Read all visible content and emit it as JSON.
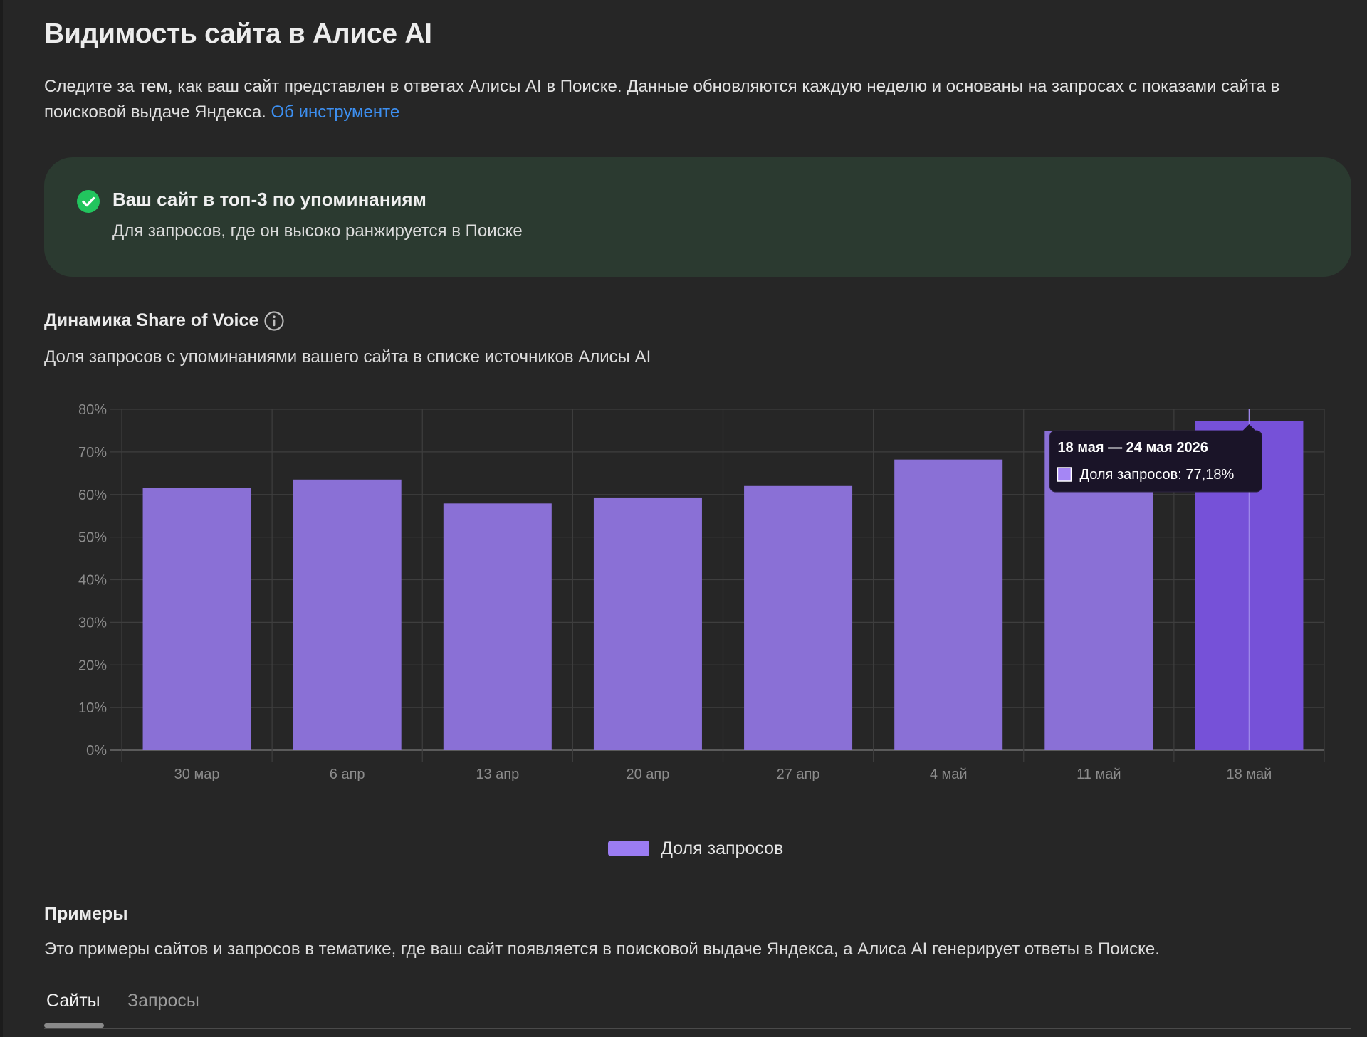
{
  "page": {
    "title": "Видимость сайта в Алисе AI",
    "intro_text": "Следите за тем, как ваш сайт представлен в ответах Алисы AI в Поиске. Данные обновляются каждую неделю и основаны на запросах с показами сайта в поисковой выдаче Яндекса. ",
    "intro_link": "Об инструменте"
  },
  "banner": {
    "icon": "check-circle-icon",
    "title": "Ваш сайт в топ-3 по упоминаниям",
    "subtitle": "Для запросов, где он высоко ранжируется в Поиске",
    "color": "#2b3a30"
  },
  "sov_section": {
    "title": "Динамика Share of Voice",
    "info_icon": "info-icon",
    "subtitle": "Доля запросов с упоминаниями вашего сайта в списке источников Алисы AI"
  },
  "chart_data": {
    "type": "bar",
    "categories": [
      "30 мар",
      "6 апр",
      "13 апр",
      "20 апр",
      "27 апр",
      "4 май",
      "11 май",
      "18 май"
    ],
    "series": [
      {
        "name": "Доля запросов",
        "values": [
          61.6,
          63.5,
          57.9,
          59.3,
          62.0,
          68.2,
          74.9,
          77.18
        ],
        "color": "#8a70d6",
        "highlight_color": "#7651d8"
      }
    ],
    "y_ticks": [
      "0%",
      "10%",
      "20%",
      "30%",
      "40%",
      "50%",
      "60%",
      "70%",
      "80%"
    ],
    "ylim": [
      0,
      80
    ],
    "grid": true,
    "legend_placement": "bottom-center",
    "highlighted_index": 7,
    "tooltip": {
      "title": "18 мая — 24 мая 2026",
      "label": "Доля запросов: 77,18%"
    }
  },
  "legend": {
    "label": "Доля запросов",
    "color": "#9b7cf2"
  },
  "examples": {
    "title": "Примеры",
    "subtitle": "Это примеры сайтов и запросов в тематике, где ваш сайт появляется в поисковой выдаче Яндекса, а Алиса AI генерирует ответы в Поиске.",
    "tabs": [
      {
        "label": "Сайты",
        "active": true
      },
      {
        "label": "Запросы",
        "active": false
      }
    ]
  }
}
